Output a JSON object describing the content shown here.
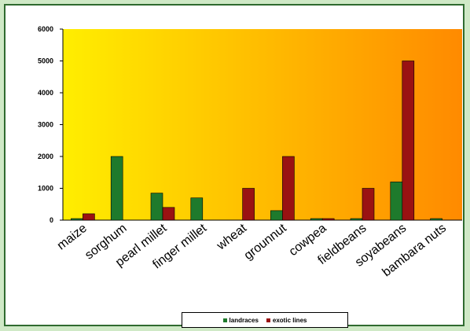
{
  "colors": {
    "landraces": "#1e7a2c",
    "exotic": "#9a1212",
    "plot_gradient_start": "#ffee00",
    "plot_gradient_end": "#ff8a00"
  },
  "chart_data": {
    "type": "bar",
    "categories": [
      "maize",
      "sorghum",
      "pearl millet",
      "finger millet",
      "wheat",
      "grounnut",
      "cowpea",
      "fieldbeans",
      "soyabeans",
      "bambara nuts"
    ],
    "series": [
      {
        "name": "landraces",
        "values": [
          50,
          2000,
          850,
          700,
          0,
          300,
          50,
          50,
          1200,
          50
        ]
      },
      {
        "name": "exotic lines",
        "values": [
          200,
          0,
          400,
          0,
          1000,
          2000,
          50,
          1000,
          5000,
          0
        ]
      }
    ],
    "yticks": [
      "6000",
      "5000",
      "4000",
      "3000",
      "2000",
      "1000",
      "0"
    ],
    "ylim": [
      0,
      6000
    ],
    "grid": false,
    "legend_position": "bottom",
    "title": "",
    "xlabel": "",
    "ylabel": ""
  },
  "legend": {
    "landraces_label": "landraces",
    "exotic_label": "exotic lines"
  }
}
